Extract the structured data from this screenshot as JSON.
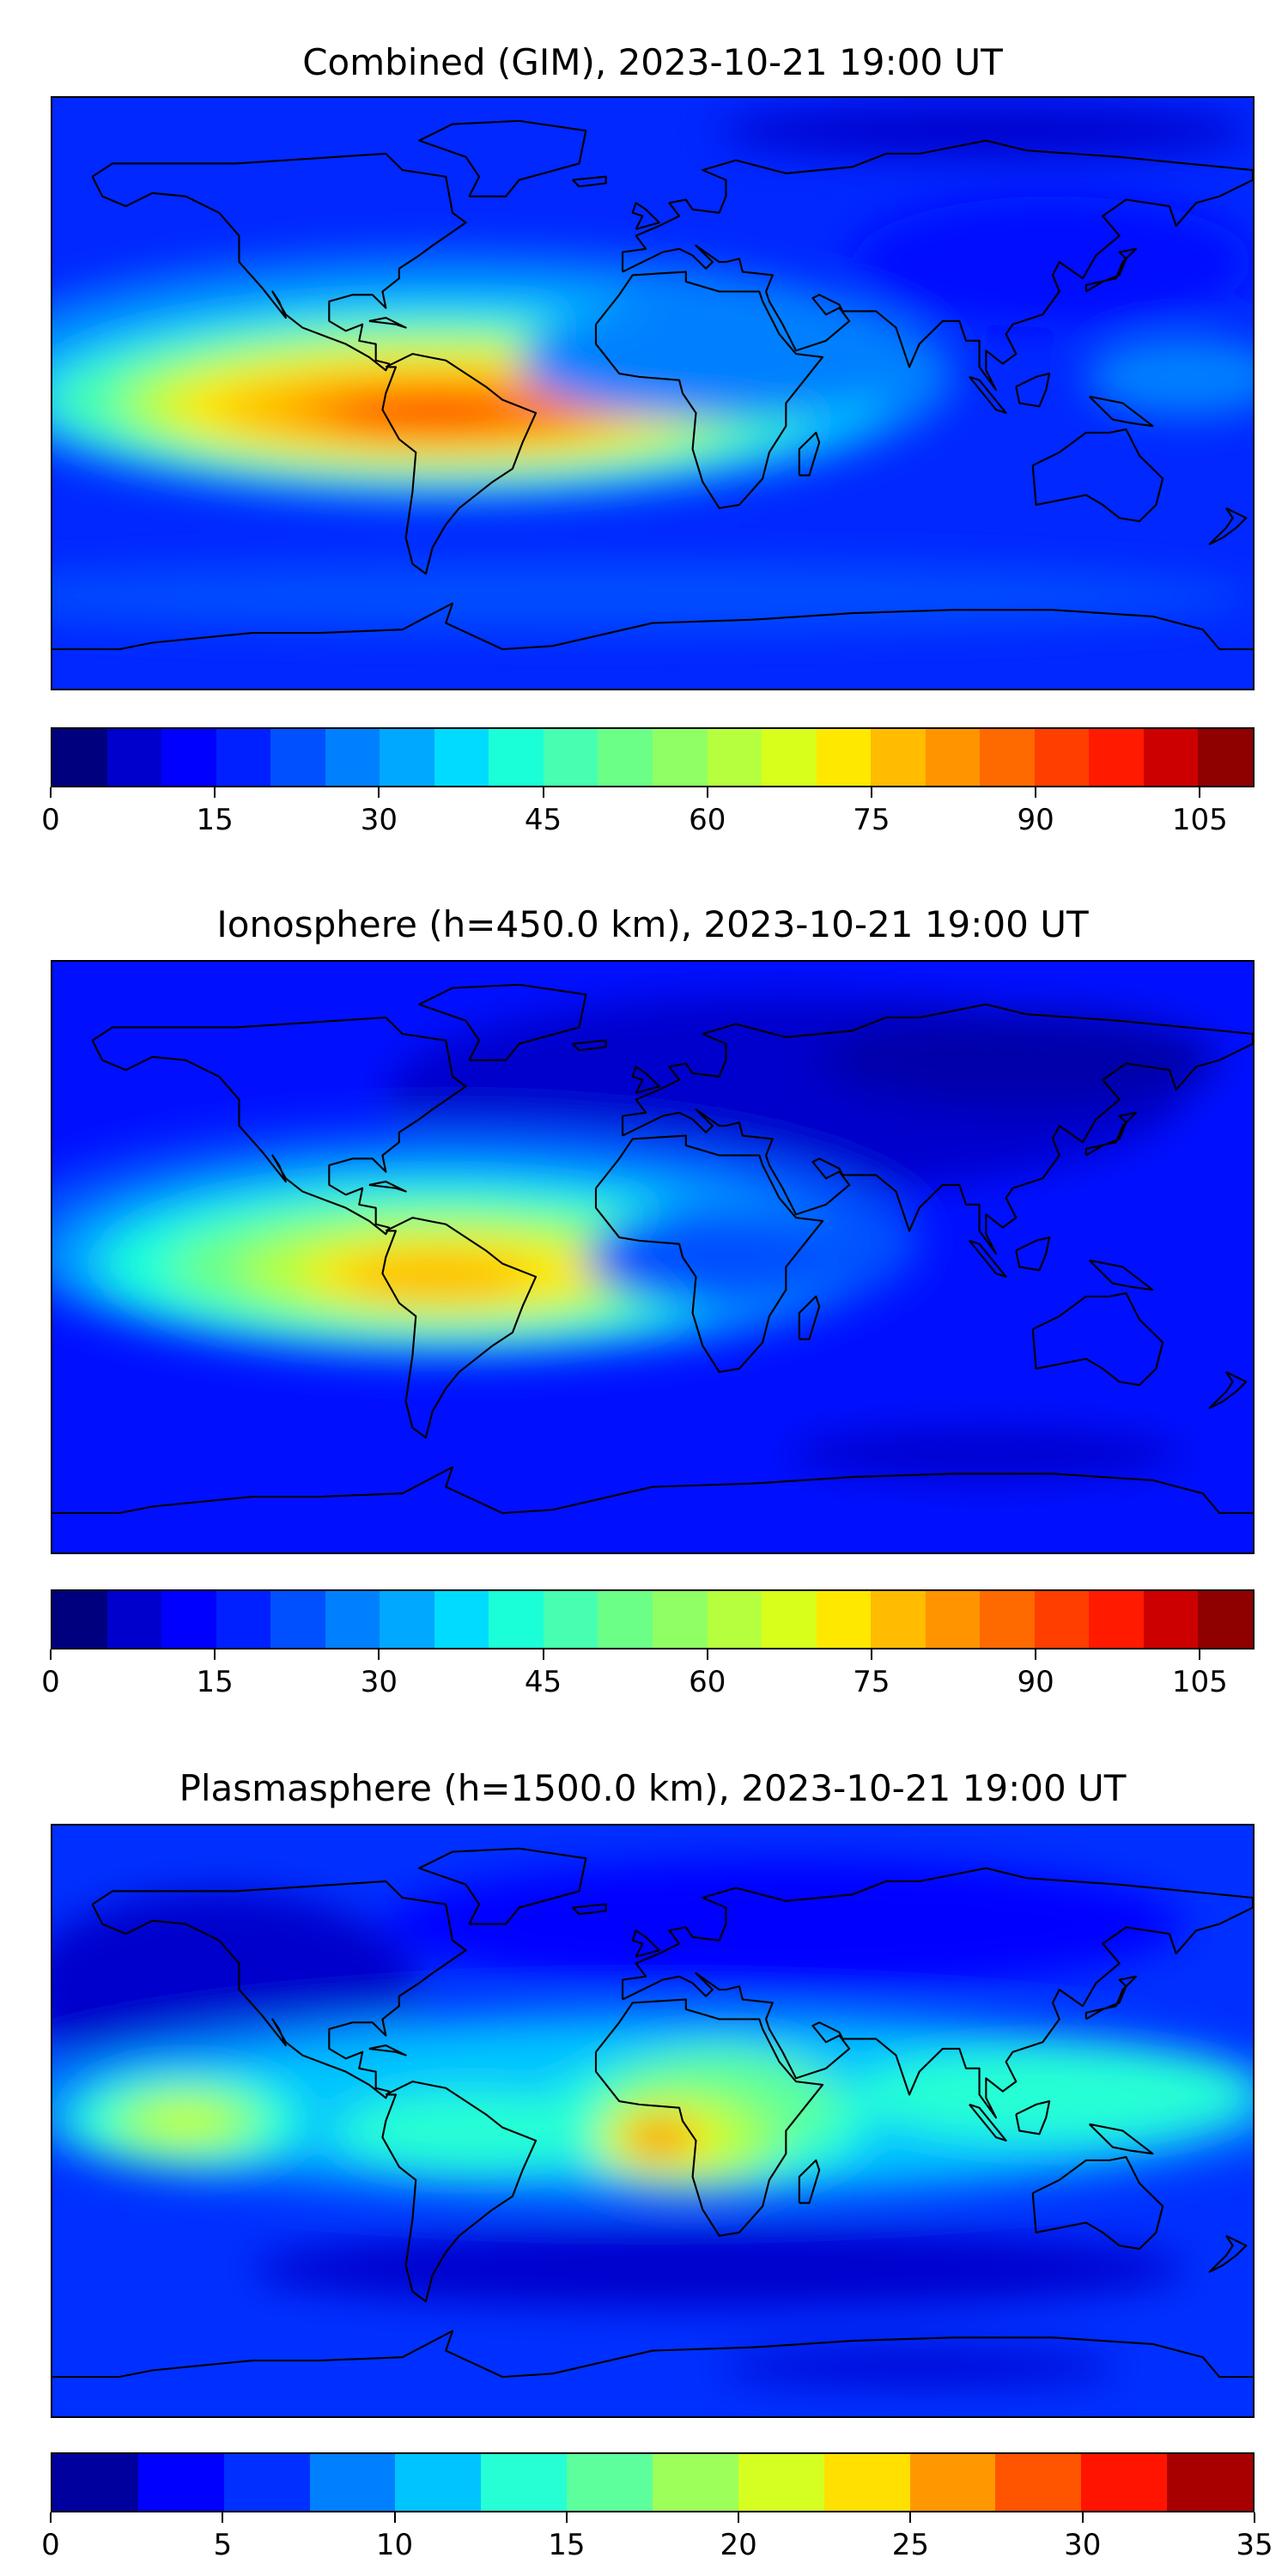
{
  "chart_data": [
    {
      "type": "heatmap",
      "title": "Combined (GIM), 2023-10-21 19:00 UT",
      "colorbar": {
        "min": 0,
        "max": 110,
        "step": 5,
        "ticks": [
          0,
          15,
          30,
          45,
          60,
          75,
          90,
          105
        ],
        "colors": [
          "#00007f",
          "#0000cc",
          "#0000ff",
          "#0020ff",
          "#0050ff",
          "#0080ff",
          "#00a8ff",
          "#00dcff",
          "#1affd8",
          "#46ffb0",
          "#6cff88",
          "#90ff64",
          "#b6ff3e",
          "#d8ff1c",
          "#ffe800",
          "#ffbc00",
          "#ff9400",
          "#ff6a00",
          "#ff3e00",
          "#ff1a00",
          "#cc0000",
          "#8f0000"
        ]
      },
      "peak_value_approx": 95,
      "peak_region": "South America / equatorial Atlantic"
    },
    {
      "type": "heatmap",
      "title": "Ionosphere  (h=450.0 km), 2023-10-21 19:00 UT",
      "colorbar": {
        "min": 0,
        "max": 110,
        "step": 5,
        "ticks": [
          0,
          15,
          30,
          45,
          60,
          75,
          90,
          105
        ],
        "colors": [
          "#00007f",
          "#0000cc",
          "#0000ff",
          "#0020ff",
          "#0050ff",
          "#0080ff",
          "#00a8ff",
          "#00dcff",
          "#1affd8",
          "#46ffb0",
          "#6cff88",
          "#90ff64",
          "#b6ff3e",
          "#d8ff1c",
          "#ffe800",
          "#ffbc00",
          "#ff9400",
          "#ff6a00",
          "#ff3e00",
          "#ff1a00",
          "#cc0000",
          "#8f0000"
        ]
      },
      "peak_value_approx": 77,
      "peak_region": "South America"
    },
    {
      "type": "heatmap",
      "title": "Plasmasphere (h=1500.0 km), 2023-10-21 19:00 UT",
      "colorbar": {
        "min": 0,
        "max": 35,
        "step": 2.5,
        "ticks": [
          0,
          5,
          10,
          15,
          20,
          25,
          30,
          35
        ],
        "colors": [
          "#00009f",
          "#0000ff",
          "#0030ff",
          "#0080ff",
          "#00c4ff",
          "#26ffd4",
          "#5cff9c",
          "#9cff5a",
          "#d4ff20",
          "#ffe000",
          "#ff9800",
          "#ff5400",
          "#ff1400",
          "#a80000"
        ]
      },
      "peak_value_approx": 30,
      "peak_region": "Gulf of Guinea / West Africa"
    }
  ]
}
